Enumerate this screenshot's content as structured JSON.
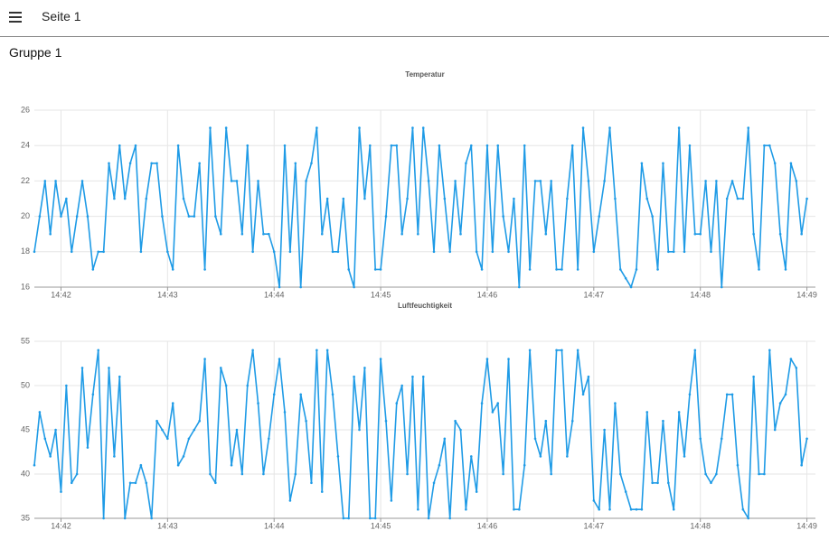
{
  "header": {
    "title": "Seite 1"
  },
  "group": {
    "title": "Gruppe 1"
  },
  "chart_data": [
    {
      "type": "line",
      "title": "Temperatur",
      "color": "#1f9be6",
      "grid": true,
      "x": [
        41.75,
        41.8,
        41.85,
        41.9,
        41.95,
        42,
        42.05,
        42.1,
        42.15,
        42.2,
        42.25,
        42.3,
        42.35,
        42.4,
        42.45,
        42.5,
        42.55,
        42.6,
        42.65,
        42.7,
        42.75,
        42.8,
        42.85,
        42.9,
        42.95,
        43,
        43.05,
        43.1,
        43.15,
        43.2,
        43.25,
        43.3,
        43.35,
        43.4,
        43.45,
        43.5,
        43.55,
        43.6,
        43.65,
        43.7,
        43.75,
        43.8,
        43.85,
        43.9,
        43.95,
        44,
        44.05,
        44.1,
        44.15,
        44.2,
        44.25,
        44.3,
        44.35,
        44.4,
        44.45,
        44.5,
        44.55,
        44.6,
        44.65,
        44.7,
        44.75,
        44.8,
        44.85,
        44.9,
        44.95,
        45,
        45.05,
        45.1,
        45.15,
        45.2,
        45.25,
        45.3,
        45.35,
        45.4,
        45.45,
        45.5,
        45.55,
        45.6,
        45.65,
        45.7,
        45.75,
        45.8,
        45.85,
        45.9,
        45.95,
        46,
        46.05,
        46.1,
        46.15,
        46.2,
        46.25,
        46.3,
        46.35,
        46.4,
        46.45,
        46.5,
        46.55,
        46.6,
        46.65,
        46.7,
        46.75,
        46.8,
        46.85,
        46.9,
        46.95,
        47,
        47.05,
        47.1,
        47.15,
        47.2,
        47.25,
        47.3,
        47.35,
        47.4,
        47.45,
        47.5,
        47.55,
        47.6,
        47.65,
        47.7,
        47.75,
        47.8,
        47.85,
        47.9,
        47.95,
        48,
        48.05,
        48.1,
        48.15,
        48.2,
        48.25,
        48.3,
        48.35,
        48.4,
        48.45,
        48.5,
        48.55,
        48.6,
        48.65,
        48.7,
        48.75,
        48.8,
        48.85,
        48.9,
        48.95,
        49
      ],
      "values": [
        18,
        20,
        22,
        19,
        22,
        20,
        21,
        18,
        20,
        22,
        20,
        17,
        18,
        18,
        23,
        21,
        24,
        21,
        23,
        24,
        18,
        21,
        23,
        23,
        20,
        18,
        17,
        24,
        21,
        20,
        20,
        23,
        17,
        25,
        20,
        19,
        25,
        22,
        22,
        19,
        24,
        18,
        22,
        19,
        19,
        18,
        16,
        24,
        18,
        23,
        16,
        22,
        23,
        25,
        19,
        21,
        18,
        18,
        21,
        17,
        16,
        25,
        21,
        24,
        17,
        17,
        20,
        24,
        24,
        19,
        21,
        25,
        19,
        25,
        22,
        18,
        24,
        21,
        18,
        22,
        19,
        23,
        24,
        18,
        17,
        24,
        18,
        24,
        20,
        18,
        21,
        16,
        24,
        17,
        22,
        22,
        19,
        22,
        17,
        17,
        21,
        24,
        17,
        25,
        22,
        18,
        20,
        22,
        25,
        21,
        17,
        16.5,
        16,
        17,
        23,
        21,
        20,
        17,
        23,
        18,
        18,
        25,
        18,
        24,
        19,
        19,
        22,
        18,
        22,
        16,
        21,
        22,
        21,
        21,
        25,
        19,
        17,
        24,
        24,
        23,
        19,
        17,
        23,
        22,
        19,
        21
      ],
      "xlim": [
        41.75,
        49.08
      ],
      "ylim": [
        16,
        26
      ],
      "xticks": [
        {
          "value": 42,
          "label": "14:42"
        },
        {
          "value": 43,
          "label": "14:43"
        },
        {
          "value": 44,
          "label": "14:44"
        },
        {
          "value": 45,
          "label": "14:45"
        },
        {
          "value": 46,
          "label": "14:46"
        },
        {
          "value": 47,
          "label": "14:47"
        },
        {
          "value": 48,
          "label": "14:48"
        },
        {
          "value": 49,
          "label": "14:49"
        }
      ],
      "yticks": [
        16,
        18,
        20,
        22,
        24,
        26
      ]
    },
    {
      "type": "line",
      "title": "Luftfeuchtigkeit",
      "color": "#1f9be6",
      "grid": true,
      "x": [
        41.75,
        41.8,
        41.85,
        41.9,
        41.95,
        42,
        42.05,
        42.1,
        42.15,
        42.2,
        42.25,
        42.3,
        42.35,
        42.4,
        42.45,
        42.5,
        42.55,
        42.6,
        42.65,
        42.7,
        42.75,
        42.8,
        42.85,
        42.9,
        42.95,
        43,
        43.05,
        43.1,
        43.15,
        43.2,
        43.25,
        43.3,
        43.35,
        43.4,
        43.45,
        43.5,
        43.55,
        43.6,
        43.65,
        43.7,
        43.75,
        43.8,
        43.85,
        43.9,
        43.95,
        44,
        44.05,
        44.1,
        44.15,
        44.2,
        44.25,
        44.3,
        44.35,
        44.4,
        44.45,
        44.5,
        44.55,
        44.6,
        44.65,
        44.7,
        44.75,
        44.8,
        44.85,
        44.9,
        44.95,
        45,
        45.05,
        45.1,
        45.15,
        45.2,
        45.25,
        45.3,
        45.35,
        45.4,
        45.45,
        45.5,
        45.55,
        45.6,
        45.65,
        45.7,
        45.75,
        45.8,
        45.85,
        45.9,
        45.95,
        46,
        46.05,
        46.1,
        46.15,
        46.2,
        46.25,
        46.3,
        46.35,
        46.4,
        46.45,
        46.5,
        46.55,
        46.6,
        46.65,
        46.7,
        46.75,
        46.8,
        46.85,
        46.9,
        46.95,
        47,
        47.05,
        47.1,
        47.15,
        47.2,
        47.25,
        47.3,
        47.35,
        47.4,
        47.45,
        47.5,
        47.55,
        47.6,
        47.65,
        47.7,
        47.75,
        47.8,
        47.85,
        47.9,
        47.95,
        48,
        48.05,
        48.1,
        48.15,
        48.2,
        48.25,
        48.3,
        48.35,
        48.4,
        48.45,
        48.5,
        48.55,
        48.6,
        48.65,
        48.7,
        48.75,
        48.8,
        48.85,
        48.9,
        48.95,
        49
      ],
      "values": [
        41,
        47,
        44,
        42,
        45,
        38,
        50,
        39,
        40,
        52,
        43,
        49,
        54,
        35,
        52,
        42,
        51,
        35,
        39,
        39,
        41,
        39,
        35,
        46,
        45,
        44,
        48,
        41,
        42,
        44,
        45,
        46,
        53,
        40,
        39,
        52,
        50,
        41,
        45,
        40,
        50,
        54,
        48,
        40,
        44,
        49,
        53,
        47,
        37,
        40,
        49,
        46,
        39,
        54,
        38,
        54,
        49,
        42,
        35,
        35,
        51,
        45,
        52,
        35,
        35,
        53,
        46,
        37,
        48,
        50,
        40,
        51,
        36,
        51,
        35,
        39,
        41,
        44,
        35,
        46,
        45,
        36,
        42,
        38,
        48,
        53,
        47,
        48,
        40,
        53,
        36,
        36,
        41,
        54,
        44,
        42,
        46,
        40,
        54,
        54,
        42,
        46,
        54,
        49,
        51,
        37,
        36,
        45,
        36,
        48,
        40,
        38,
        36,
        36,
        36,
        47,
        39,
        39,
        46,
        39,
        36,
        47,
        42,
        49,
        54,
        44,
        40,
        39,
        40,
        44,
        49,
        49,
        41,
        36,
        35,
        51,
        40,
        40,
        54,
        45,
        48,
        49,
        53,
        52,
        41,
        44
      ],
      "xlim": [
        41.75,
        49.08
      ],
      "ylim": [
        35,
        55
      ],
      "xticks": [
        {
          "value": 42,
          "label": "14:42"
        },
        {
          "value": 43,
          "label": "14:43"
        },
        {
          "value": 44,
          "label": "14:44"
        },
        {
          "value": 45,
          "label": "14:45"
        },
        {
          "value": 46,
          "label": "14:46"
        },
        {
          "value": 47,
          "label": "14:47"
        },
        {
          "value": 48,
          "label": "14:48"
        },
        {
          "value": 49,
          "label": "14:49"
        }
      ],
      "yticks": [
        35,
        40,
        45,
        50,
        55
      ]
    }
  ]
}
